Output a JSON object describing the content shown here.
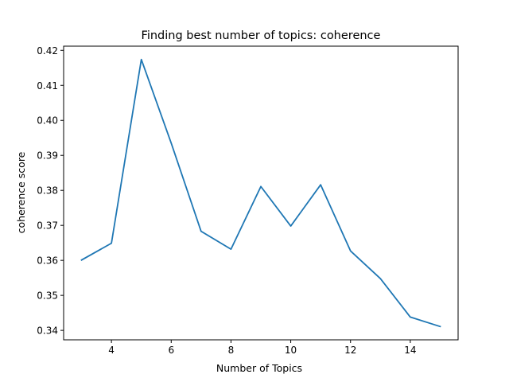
{
  "chart_data": {
    "type": "line",
    "title": "Finding best number of topics:  coherence",
    "xlabel": "Number of Topics",
    "ylabel": "coherence score",
    "x": [
      3,
      4,
      5,
      6,
      7,
      8,
      9,
      10,
      11,
      12,
      13,
      14,
      15
    ],
    "series": [
      {
        "values": [
          0.3601,
          0.3649,
          0.4174,
          0.3935,
          0.3683,
          0.3632,
          0.3811,
          0.3698,
          0.3816,
          0.3627,
          0.3548,
          0.3438,
          0.3411
        ],
        "color": "#1f77b4"
      }
    ],
    "xlim": [
      2.4,
      15.6
    ],
    "ylim": [
      0.3373,
      0.4212
    ],
    "xticks": [
      4,
      6,
      8,
      10,
      12,
      14
    ],
    "xtick_labels": [
      "4",
      "6",
      "8",
      "10",
      "12",
      "14"
    ],
    "yticks": [
      0.34,
      0.35,
      0.36,
      0.37,
      0.38,
      0.39,
      0.4,
      0.41,
      0.42
    ],
    "ytick_labels": [
      "0.34",
      "0.35",
      "0.36",
      "0.37",
      "0.38",
      "0.39",
      "0.40",
      "0.41",
      "0.42"
    ],
    "grid": false,
    "legend": "none"
  }
}
